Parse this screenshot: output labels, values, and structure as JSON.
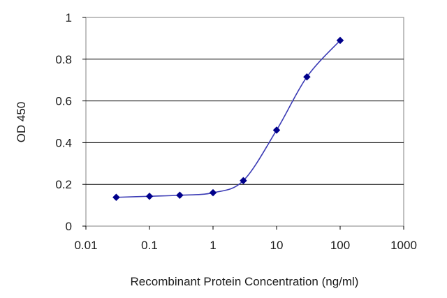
{
  "chart_data": {
    "type": "line",
    "title": "",
    "xlabel": "Recombinant Protein Concentration (ng/ml)",
    "ylabel": "OD 450",
    "xscale": "log",
    "xlim": [
      0.01,
      1000
    ],
    "ylim": [
      0,
      1
    ],
    "xticks": [
      "0.01",
      "0.1",
      "1",
      "10",
      "100",
      "1000"
    ],
    "yticks": [
      "0",
      "0.2",
      "0.4",
      "0.6",
      "0.8",
      "1"
    ],
    "grid": "horizontal",
    "legend": "none",
    "series": [
      {
        "x": [
          0.03,
          0.1,
          0.3,
          1,
          3,
          10,
          30,
          100
        ],
        "y": [
          0.138,
          0.143,
          0.148,
          0.16,
          0.218,
          0.46,
          0.715,
          0.89
        ],
        "color": "#00008b",
        "marker": "diamond"
      }
    ]
  }
}
